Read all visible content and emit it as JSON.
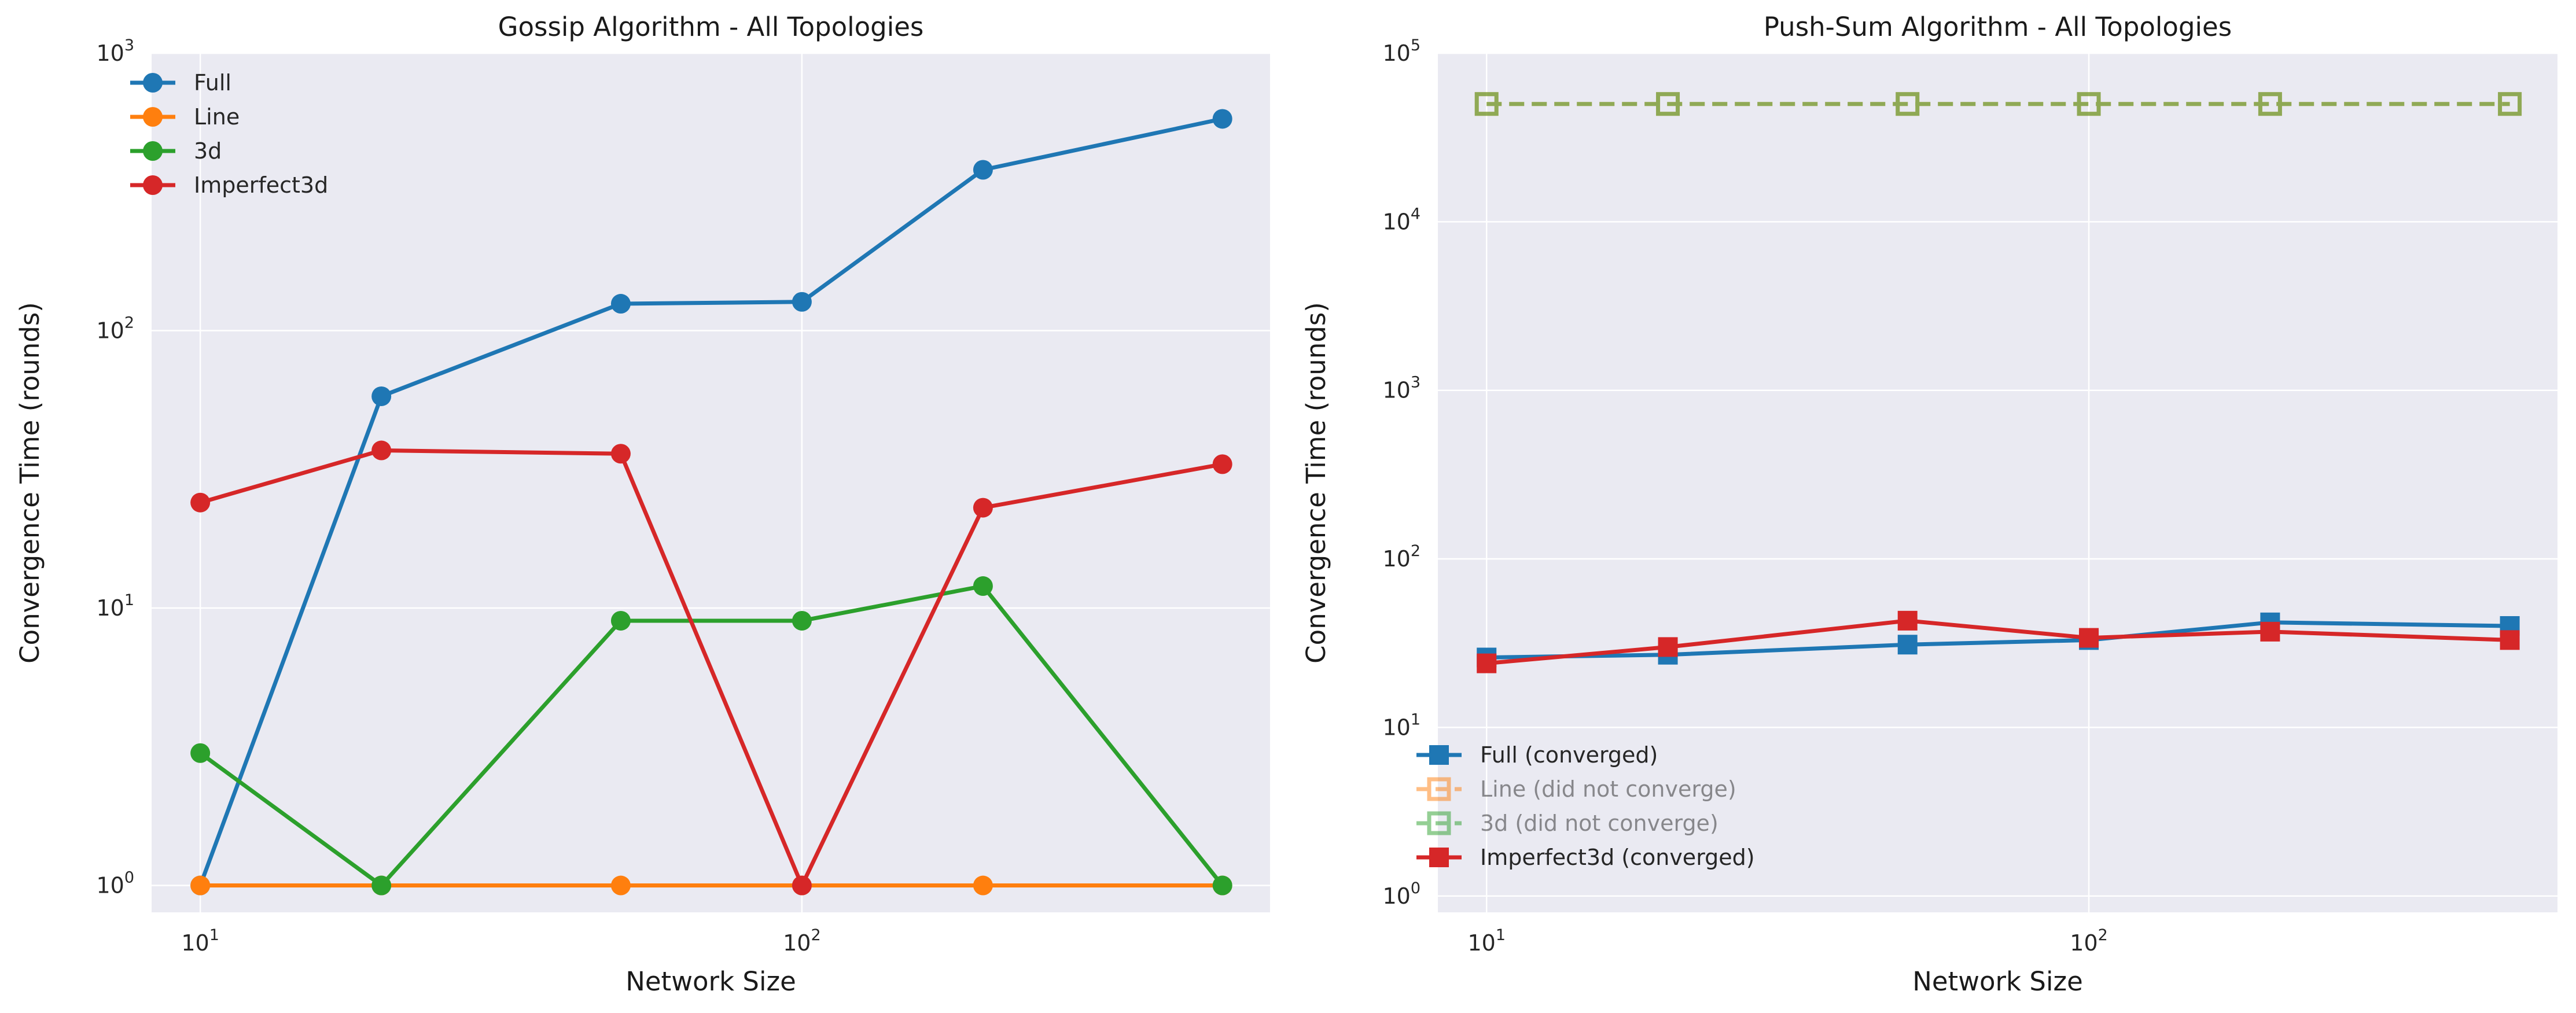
{
  "chart_data": [
    {
      "type": "line",
      "title": "Gossip Algorithm - All Topologies",
      "xlabel": "Network Size",
      "ylabel": "Convergence Time (rounds)",
      "xscale": "log",
      "yscale": "log",
      "xlim": [
        8.3,
        600
      ],
      "ylim": [
        0.8,
        1000
      ],
      "x_ticks": [
        {
          "base": "10",
          "exp": "1",
          "value": 10
        },
        {
          "base": "10",
          "exp": "2",
          "value": 100
        }
      ],
      "y_ticks": [
        {
          "base": "10",
          "exp": "0",
          "value": 1
        },
        {
          "base": "10",
          "exp": "1",
          "value": 10
        },
        {
          "base": "10",
          "exp": "2",
          "value": 100
        },
        {
          "base": "10",
          "exp": "3",
          "value": 1000
        }
      ],
      "grid": true,
      "legend_position": "top-left",
      "x": [
        10,
        20,
        50,
        100,
        200,
        500
      ],
      "series": [
        {
          "name": "Full",
          "color": "#1f77b4",
          "marker": "circle",
          "values": [
            1,
            58,
            125,
            127,
            380,
            580
          ]
        },
        {
          "name": "Line",
          "color": "#ff7f0e",
          "marker": "circle",
          "values": [
            1,
            1,
            1,
            1,
            1,
            1
          ]
        },
        {
          "name": "3d",
          "color": "#2ca02c",
          "marker": "circle",
          "values": [
            3,
            1,
            9,
            9,
            12,
            1
          ]
        },
        {
          "name": "Imperfect3d",
          "color": "#d62728",
          "marker": "circle",
          "values": [
            24,
            37,
            36,
            1,
            23,
            33
          ]
        }
      ]
    },
    {
      "type": "line",
      "title": "Push-Sum Algorithm - All Topologies",
      "xlabel": "Network Size",
      "ylabel": "Convergence Time (rounds)",
      "xscale": "log",
      "yscale": "log",
      "xlim": [
        8.3,
        600
      ],
      "ylim": [
        0.8,
        100000
      ],
      "x_ticks": [
        {
          "base": "10",
          "exp": "1",
          "value": 10
        },
        {
          "base": "10",
          "exp": "2",
          "value": 100
        }
      ],
      "y_ticks": [
        {
          "base": "10",
          "exp": "0",
          "value": 1
        },
        {
          "base": "10",
          "exp": "1",
          "value": 10
        },
        {
          "base": "10",
          "exp": "2",
          "value": 100
        },
        {
          "base": "10",
          "exp": "3",
          "value": 1000
        },
        {
          "base": "10",
          "exp": "4",
          "value": 10000
        },
        {
          "base": "10",
          "exp": "5",
          "value": 100000
        }
      ],
      "grid": true,
      "legend_position": "lower-left",
      "x": [
        10,
        20,
        50,
        100,
        200,
        500
      ],
      "series": [
        {
          "name": "Full (converged)",
          "color": "#1f77b4",
          "marker": "square",
          "filled": true,
          "dashed": false,
          "alpha": 1,
          "values": [
            26,
            27,
            31,
            33,
            42,
            40
          ]
        },
        {
          "name": "Line (did not converge)",
          "color": "#ff7f0e",
          "marker": "square",
          "filled": false,
          "dashed": true,
          "alpha": 0.5,
          "values": [
            50000,
            50000,
            50000,
            50000,
            50000,
            50000
          ]
        },
        {
          "name": "3d (did not converge)",
          "color": "#2ca02c",
          "marker": "square",
          "filled": false,
          "dashed": true,
          "alpha": 0.5,
          "values": [
            50000,
            50000,
            50000,
            50000,
            50000,
            50000
          ]
        },
        {
          "name": "Imperfect3d (converged)",
          "color": "#d62728",
          "marker": "square",
          "filled": true,
          "dashed": false,
          "alpha": 1,
          "values": [
            24,
            30,
            43,
            34,
            37,
            33
          ]
        }
      ]
    }
  ]
}
